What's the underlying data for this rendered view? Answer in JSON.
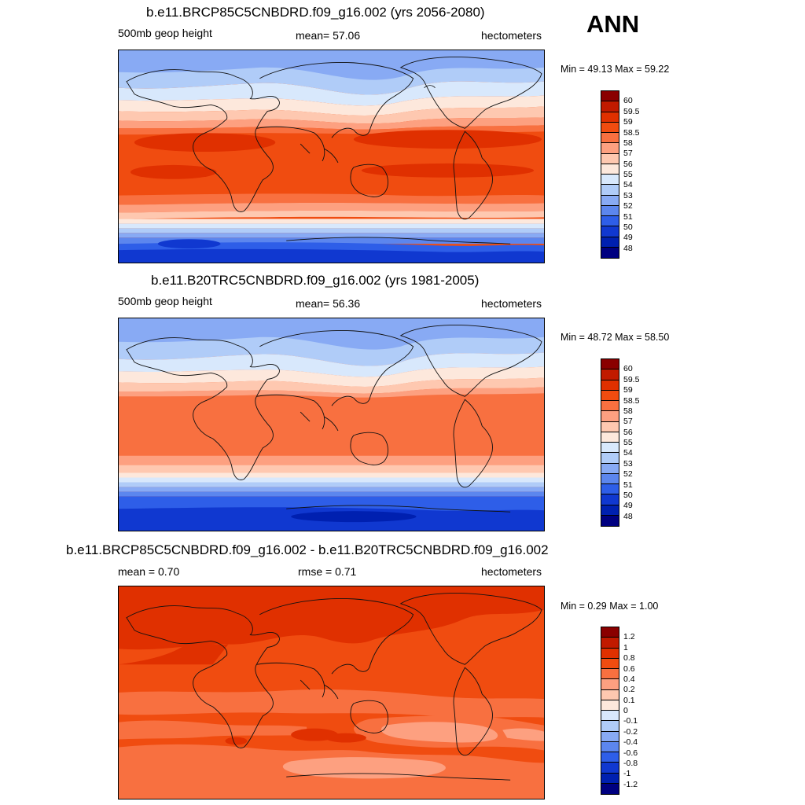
{
  "header": {
    "season": "ANN"
  },
  "panels": [
    {
      "title": "b.e11.BRCP85C5CNBDRD.f09_g16.002 (yrs 2056-2080)",
      "left_label": "500mb geop height",
      "center_label": "mean=  57.06",
      "units": "hectometers",
      "minmax": "Min =  49.13 Max =  59.22",
      "colorbar": {
        "levels": [
          "60",
          "59.5",
          "59",
          "58.5",
          "58",
          "57",
          "56",
          "55",
          "54",
          "53",
          "52",
          "51",
          "50",
          "49",
          "48"
        ],
        "colors": [
          "#8a0000",
          "#c11a00",
          "#e03000",
          "#f04c10",
          "#f87040",
          "#fda080",
          "#fec8b0",
          "#fde8dc",
          "#d8e8fc",
          "#b0ccf8",
          "#88aaf4",
          "#5c86ee",
          "#2e5ee8",
          "#1038d0",
          "#0020b0",
          "#000080"
        ]
      }
    },
    {
      "title": "b.e11.B20TRC5CNBDRD.f09_g16.002 (yrs 1981-2005)",
      "left_label": "500mb geop height",
      "center_label": "mean=  56.36",
      "units": "hectometers",
      "minmax": "Min =  48.72 Max =  58.50",
      "colorbar": {
        "levels": [
          "60",
          "59.5",
          "59",
          "58.5",
          "58",
          "57",
          "56",
          "55",
          "54",
          "53",
          "52",
          "51",
          "50",
          "49",
          "48"
        ],
        "colors": [
          "#8a0000",
          "#c11a00",
          "#e03000",
          "#f04c10",
          "#f87040",
          "#fda080",
          "#fec8b0",
          "#fde8dc",
          "#d8e8fc",
          "#b0ccf8",
          "#88aaf4",
          "#5c86ee",
          "#2e5ee8",
          "#1038d0",
          "#0020b0",
          "#000080"
        ]
      }
    },
    {
      "title": "b.e11.BRCP85C5CNBDRD.f09_g16.002 - b.e11.B20TRC5CNBDRD.f09_g16.002",
      "left_label": "mean =   0.70",
      "center_label": "rmse =   0.71",
      "units": "hectometers",
      "minmax": "Min =   0.29 Max =   1.00",
      "colorbar": {
        "levels": [
          "1.2",
          "1",
          "0.8",
          "0.6",
          "0.4",
          "0.2",
          "0.1",
          "0",
          "-0.1",
          "-0.2",
          "-0.4",
          "-0.6",
          "-0.8",
          "-1",
          "-1.2"
        ],
        "colors": [
          "#8a0000",
          "#c11a00",
          "#e03000",
          "#f04c10",
          "#f87040",
          "#fda080",
          "#fec8b0",
          "#fde8dc",
          "#d8e8fc",
          "#b0ccf8",
          "#88aaf4",
          "#5c86ee",
          "#2e5ee8",
          "#1038d0",
          "#0020b0",
          "#000080"
        ]
      }
    }
  ]
}
